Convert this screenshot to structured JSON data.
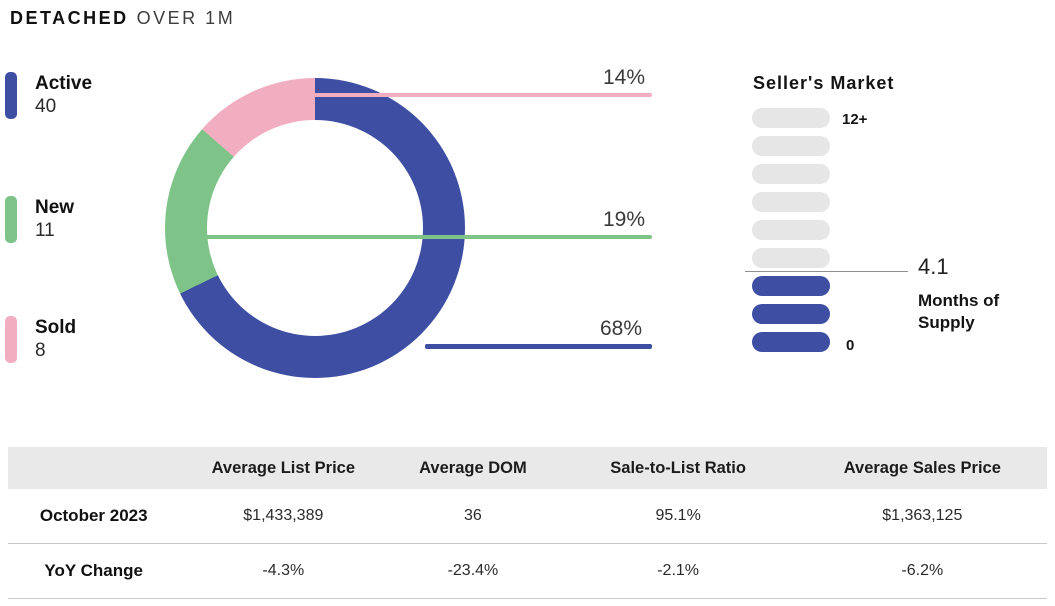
{
  "title": {
    "primary": "DETACHED",
    "secondary": "OVER 1M"
  },
  "legend": [
    {
      "label": "Active",
      "value": "40"
    },
    {
      "label": "New",
      "value": "11"
    },
    {
      "label": "Sold",
      "value": "8"
    }
  ],
  "chart_data": {
    "type": "pie",
    "title": "Detached Over 1M - listing status share",
    "segments": [
      {
        "label": "Active",
        "value": 40,
        "pct": "68%",
        "color": "#3d4ea3"
      },
      {
        "label": "New",
        "value": 11,
        "pct": "19%",
        "color": "#7ec488"
      },
      {
        "label": "Sold",
        "value": 8,
        "pct": "14%",
        "color": "#f2aec1"
      }
    ],
    "legend_position": "left",
    "donut": true
  },
  "supply_gauge": {
    "title": "Seller's Market",
    "top_label": "12+",
    "bottom_label": "0",
    "value": "4.1",
    "value_label": "Months of Supply",
    "total_pills": 9,
    "filled_pills": 3,
    "filled_color": "#3d4ea3",
    "empty_color": "#e6e6e6"
  },
  "table": {
    "columns": [
      "",
      "Average List Price",
      "Average DOM",
      "Sale-to-List Ratio",
      "Average Sales Price"
    ],
    "rows": [
      {
        "label": "October 2023",
        "values": [
          "$1,433,389",
          "36",
          "95.1%",
          "$1,363,125"
        ]
      },
      {
        "label": "YoY Change",
        "values": [
          "-4.3%",
          "-23.4%",
          "-2.1%",
          "-6.2%"
        ]
      }
    ]
  }
}
